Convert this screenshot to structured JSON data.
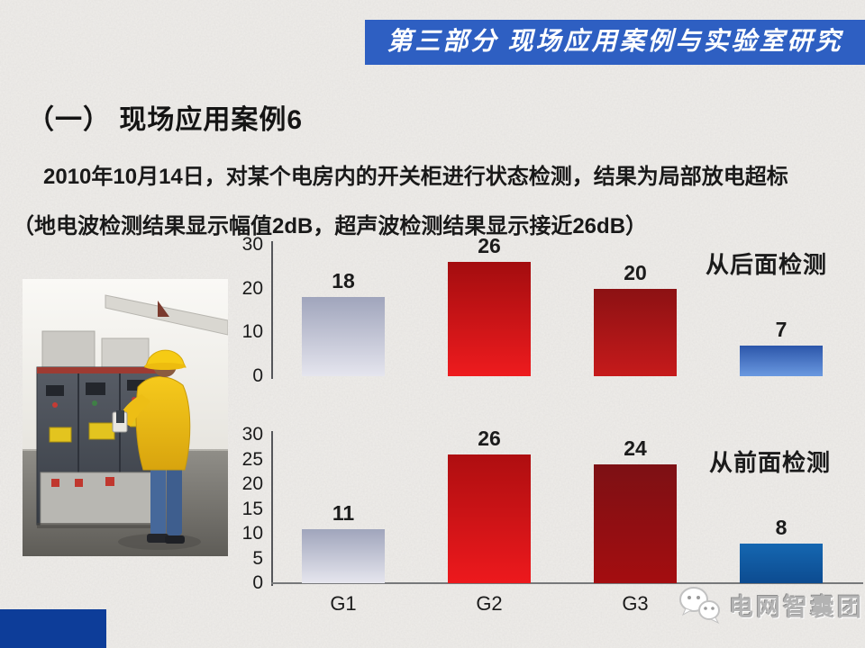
{
  "slide": {
    "banner": {
      "text": "第三部分 现场应用案例与实验室研究"
    },
    "title": "（一） 现场应用案例6",
    "body_line1": "2010年10月14日，对某个电房内的开关柜进行状态检测，结果为局部放电超标",
    "body_line2": "（地电波检测结果显示幅值2dB，超声波检测结果显示接近26dB）",
    "watermark": {
      "icon": "wechat-chat-bubbles-icon",
      "text": "电网智囊团"
    },
    "photo": {
      "description": "worker in yellow suit inspecting switchgear cabinets"
    },
    "colors": {
      "background": "#EFEDEA",
      "banner_blue": "#2E5FC2",
      "footer_blue": "#0D3D99",
      "text_black": "#191919",
      "axis_gray": "#55565A",
      "watermark_gray": "#B3B3B3"
    }
  },
  "chart_data": [
    {
      "type": "bar",
      "title": "从后面检测",
      "categories": [
        "",
        "",
        "",
        ""
      ],
      "values": [
        18,
        26,
        20,
        7
      ],
      "ylim": [
        0,
        30
      ],
      "yticks": [
        30,
        20,
        10,
        0
      ],
      "show_data_labels": true,
      "grid": false,
      "bar_colors": [
        "silver",
        "red",
        "dark-red",
        "blue"
      ],
      "palette": {
        "silver": [
          "#A0A5BC",
          "#E5E5EE"
        ],
        "red": [
          "#A30D0F",
          "#EE1B1E"
        ],
        "dark-red": [
          "#8C1113",
          "#C61A1B"
        ],
        "blue": [
          "#2C56AA",
          "#6A99E0"
        ]
      }
    },
    {
      "type": "bar",
      "title": "从前面检测",
      "categories": [
        "G1",
        "G2",
        "G3",
        ""
      ],
      "values": [
        11,
        26,
        24,
        8
      ],
      "ylim": [
        0,
        30
      ],
      "yticks": [
        30,
        25,
        20,
        15,
        10,
        5,
        0
      ],
      "show_data_labels": true,
      "grid": false,
      "bar_colors": [
        "silver",
        "red",
        "dark-red",
        "blue"
      ],
      "palette": {
        "silver": [
          "#A0A5BC",
          "#E6E6EE"
        ],
        "red": [
          "#AE0E10",
          "#ED191D"
        ],
        "dark-red": [
          "#7D1014",
          "#A40D10"
        ],
        "blue": [
          "#1567B1",
          "#0C4B90"
        ]
      }
    }
  ]
}
